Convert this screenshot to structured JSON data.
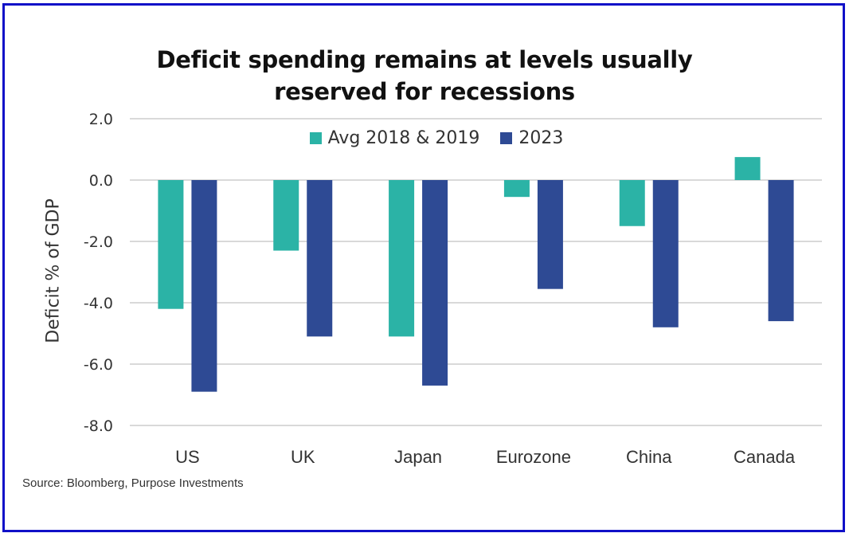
{
  "chart_data": {
    "type": "bar",
    "title": "Deficit spending remains at levels usually reserved for recessions",
    "title_lines": [
      "Deficit spending remains at levels usually",
      "reserved for recessions"
    ],
    "xlabel": "",
    "ylabel": "Deficit % of GDP",
    "categories": [
      "US",
      "UK",
      "Japan",
      "Eurozone",
      "China",
      "Canada"
    ],
    "series": [
      {
        "name": "Avg 2018 & 2019",
        "color": "#2bb3a6",
        "values": [
          -4.2,
          -2.3,
          -5.1,
          -0.55,
          -1.5,
          0.75
        ]
      },
      {
        "name": "2023",
        "color": "#2e4a94",
        "values": [
          -6.9,
          -5.1,
          -6.7,
          -3.55,
          -4.8,
          -4.6
        ]
      }
    ],
    "ylim": [
      -8.0,
      2.0
    ],
    "yticks": [
      "2.0",
      "0.0",
      "-2.0",
      "-4.0",
      "-6.0",
      "-8.0"
    ],
    "ytick_values": [
      2.0,
      0.0,
      -2.0,
      -4.0,
      -6.0,
      -8.0
    ],
    "grid": true,
    "legend_position": "top-center",
    "source": "Source: Bloomberg, Purpose Investments"
  },
  "colors": {
    "frame_border": "#1010c8",
    "gridline": "#d9d9d9",
    "text": "#333333"
  }
}
